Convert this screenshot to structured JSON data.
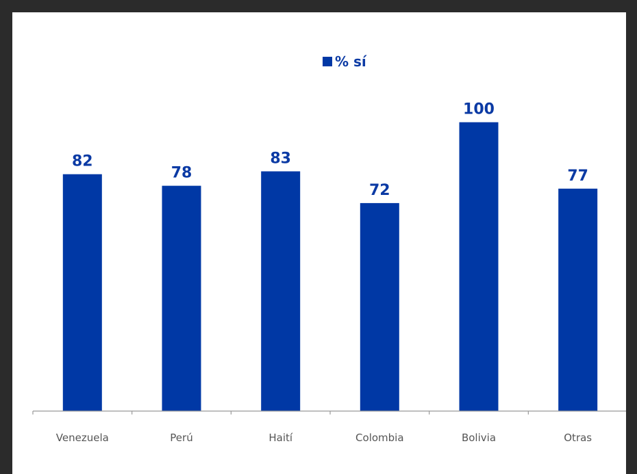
{
  "chart_data": {
    "type": "bar",
    "categories": [
      "Venezuela",
      "Perú",
      "Haití",
      "Colombia",
      "Bolivia",
      "Otras"
    ],
    "series": [
      {
        "name": "% sí",
        "values": [
          82,
          78,
          83,
          72,
          100,
          77
        ],
        "color": "#0038a5"
      }
    ],
    "data_labels": [
      "82",
      "78",
      "83",
      "72",
      "100",
      "77"
    ],
    "title": "",
    "xlabel": "",
    "ylabel": "",
    "ylim": [
      0,
      112
    ],
    "grid": false,
    "legend_position": "top-center",
    "colors": {
      "bar": "#0038a5",
      "label": "#0b3aa4",
      "axis": "#999999",
      "tick_text": "#555555",
      "frame": "#2b2b2b",
      "plot_background": "#ffffff"
    }
  }
}
